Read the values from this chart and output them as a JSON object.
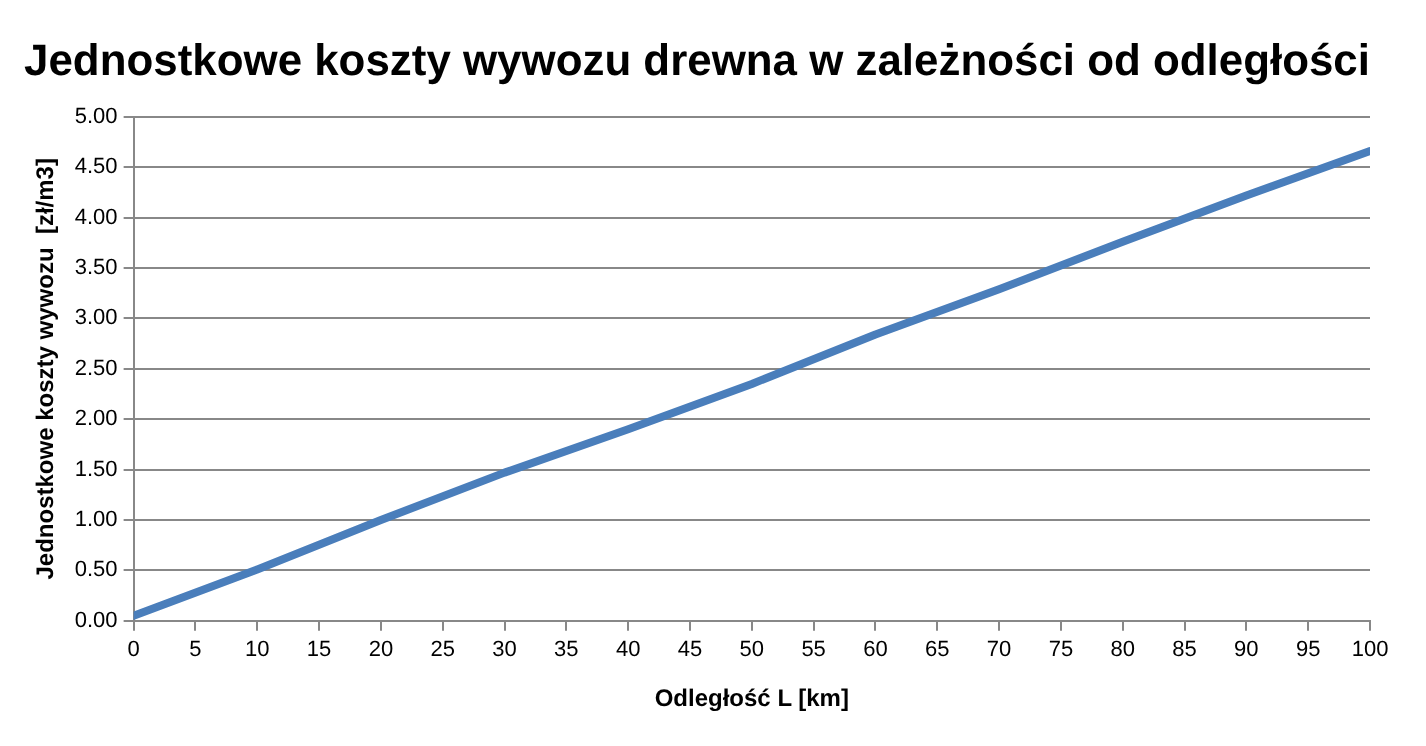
{
  "chart_data": {
    "type": "line",
    "title": "Jednostkowe koszty wywozu drewna w zależności od odległości",
    "xlabel": "Odległość L [km]",
    "ylabel": "Jednostkowe koszty wywozu  [zł/m3]",
    "x": [
      0,
      10,
      20,
      30,
      40,
      50,
      60,
      70,
      80,
      90,
      100
    ],
    "series": [
      {
        "color": "#4a7ebb",
        "values": [
          0.05,
          0.51,
          1.0,
          1.47,
          1.9,
          2.35,
          2.84,
          3.29,
          3.76,
          4.22,
          4.66
        ]
      }
    ],
    "xlim": [
      0,
      100
    ],
    "xticks": [
      0,
      5,
      10,
      15,
      20,
      25,
      30,
      35,
      40,
      45,
      50,
      55,
      60,
      65,
      70,
      75,
      80,
      85,
      90,
      95,
      100
    ],
    "ylim": [
      0,
      5
    ],
    "yticks": [
      {
        "value": 0,
        "label": "0.00"
      },
      {
        "value": 0.5,
        "label": "0.50"
      },
      {
        "value": 1,
        "label": "1.00"
      },
      {
        "value": 1.5,
        "label": "1.50"
      },
      {
        "value": 2,
        "label": "2.00"
      },
      {
        "value": 2.5,
        "label": "2.50"
      },
      {
        "value": 3,
        "label": "3.00"
      },
      {
        "value": 3.5,
        "label": "3.50"
      },
      {
        "value": 4,
        "label": "4.00"
      },
      {
        "value": 4.5,
        "label": "4.50"
      },
      {
        "value": 5,
        "label": "5.00"
      }
    ],
    "grid": "y",
    "legend": false,
    "marker": "none",
    "line_style": "solid"
  }
}
